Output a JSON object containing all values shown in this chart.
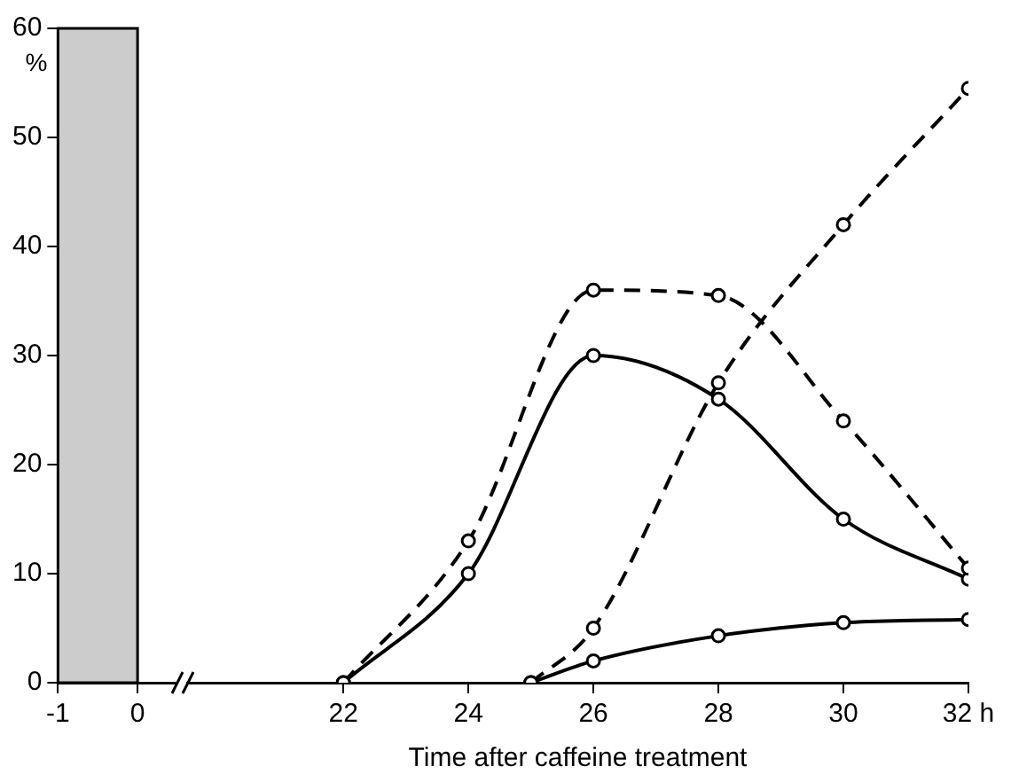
{
  "chart_data": [
    {
      "type": "line",
      "ylabel": "%",
      "xlim": [
        -1,
        0.5
      ],
      "xticks": [
        -1,
        0
      ],
      "ylim": [
        0,
        60
      ],
      "yticks": [
        0,
        10,
        20,
        30,
        40,
        50,
        60
      ],
      "grid": false,
      "legend": false,
      "bands": [
        {
          "axis": "x",
          "from": -1,
          "to": 0,
          "color": "#cccccc"
        }
      ]
    },
    {
      "type": "line",
      "xlabel": "Time after caffeine treatment",
      "xlim": [
        19.5,
        32
      ],
      "xticks": [
        22,
        24,
        26,
        28,
        30,
        {
          "value": 32,
          "label": "32 h"
        }
      ],
      "ylim": [
        0,
        60
      ],
      "tick_labels": "x",
      "grid": false,
      "legend": false,
      "marker": "circle",
      "series": [
        {
          "color": "#000000",
          "line_style": "dashed",
          "x": [
            22,
            24,
            26,
            28,
            30,
            32
          ],
          "values": [
            0,
            13,
            36,
            35.5,
            24,
            10.5
          ]
        },
        {
          "color": "#000000",
          "line_style": "solid",
          "x": [
            22,
            24,
            26,
            28,
            30,
            32
          ],
          "values": [
            0,
            10,
            30,
            26,
            15,
            9.5
          ]
        },
        {
          "color": "#000000",
          "line_style": "dashed",
          "x": [
            25,
            26,
            28,
            30,
            32
          ],
          "values": [
            0,
            5,
            27.5,
            42,
            54.5
          ]
        },
        {
          "color": "#000000",
          "line_style": "solid",
          "x": [
            25,
            26,
            28,
            30,
            32
          ],
          "values": [
            0,
            2,
            4.3,
            5.5,
            5.8
          ]
        }
      ]
    }
  ]
}
